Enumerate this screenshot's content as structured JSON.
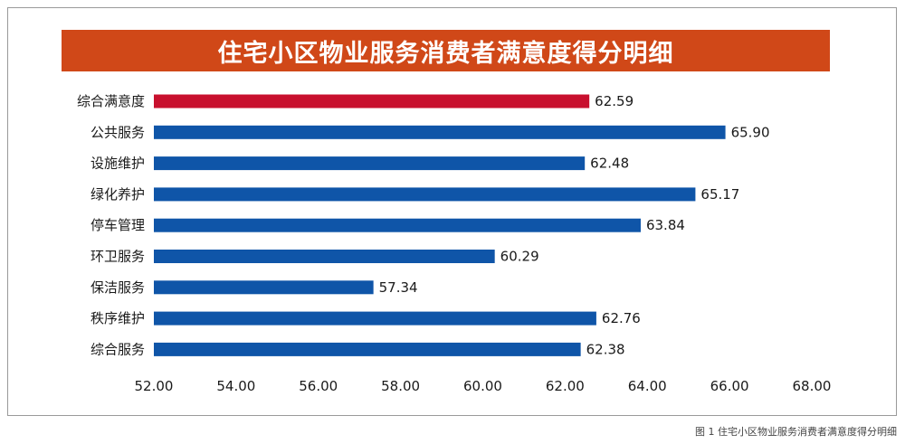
{
  "title": "住宅小区物业服务消费者满意度得分明细",
  "caption": "图 1  住宅小区物业服务消费者满意度得分明细",
  "colors": {
    "banner": "#d04818",
    "highlight": "#c8102e",
    "bar": "#0f55a8"
  },
  "chart_data": {
    "type": "bar",
    "orientation": "horizontal",
    "categories": [
      "综合满意度",
      "公共服务",
      "设施维护",
      "绿化养护",
      "停车管理",
      "环卫服务",
      "保洁服务",
      "秩序维护",
      "综合服务"
    ],
    "values": [
      62.59,
      65.9,
      62.48,
      65.17,
      63.84,
      60.29,
      57.34,
      62.76,
      62.38
    ],
    "value_labels": [
      "62.59",
      "65.90",
      "62.48",
      "65.17",
      "63.84",
      "60.29",
      "57.34",
      "62.76",
      "62.38"
    ],
    "highlight_index": 0,
    "xlim": [
      52,
      68
    ],
    "x_ticks": [
      52,
      54,
      56,
      58,
      60,
      62,
      64,
      66,
      68
    ],
    "x_tick_labels": [
      "52.00",
      "54.00",
      "56.00",
      "58.00",
      "60.00",
      "62.00",
      "64.00",
      "66.00",
      "68.00"
    ],
    "grid": false
  }
}
